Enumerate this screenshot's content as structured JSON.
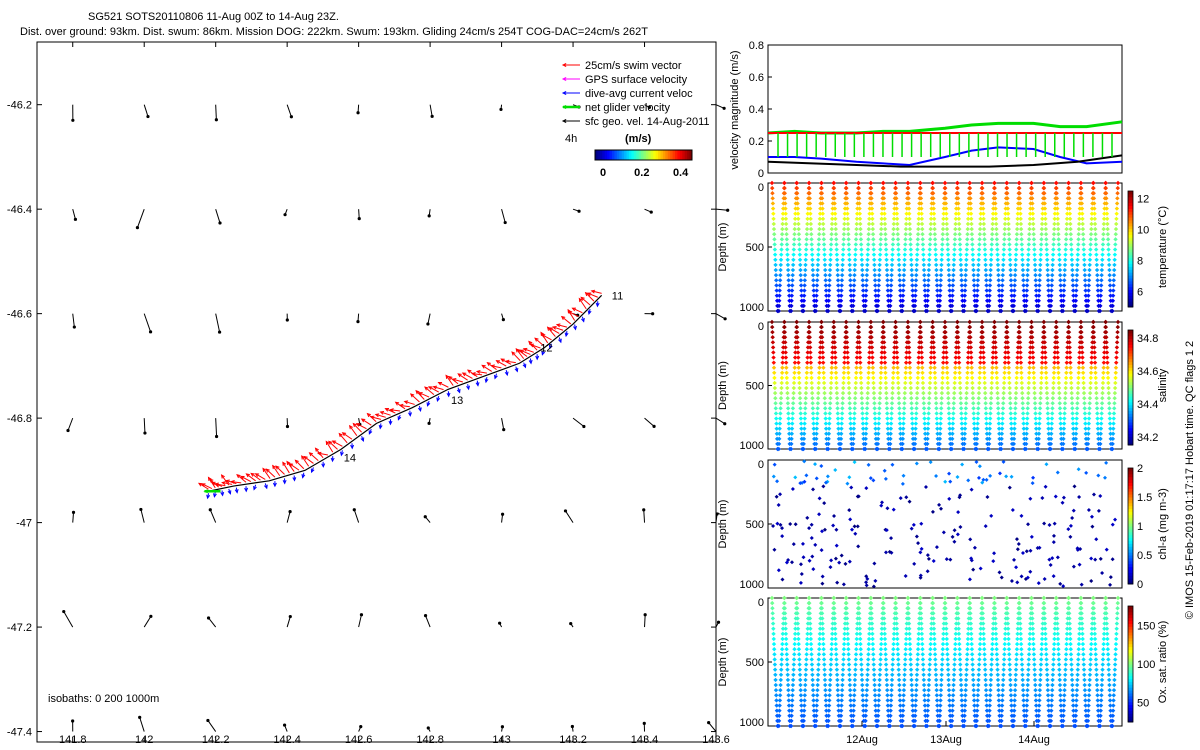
{
  "header": {
    "title_line1": "SG521 SOTS20110806 11-Aug 00Z to 14-Aug 23Z.",
    "title_line2": "Dist. over ground: 93km. Dist. swum: 86km. Mission DOG: 222km. Swum: 193km. Gliding 24cm/s 254T COG-DAC=24cm/s 262T"
  },
  "side_caption": "© IMOS 15-Feb-2019 01:17:17 Hobart time. QC flags 1  2",
  "colors": {
    "swim_vector": "#ff0000",
    "gps_velocity": "#ff00ff",
    "dive_avg_current": "#0000ff",
    "net_glider_velocity": "#00dd00",
    "sfc_geo_velocity": "#000000",
    "velocity_gps_line": "#ff0000"
  },
  "chart_data": [
    {
      "id": "map",
      "type": "scatter",
      "title": "",
      "xlim": [
        141.7,
        143.6
      ],
      "ylim": [
        -47.42,
        -46.08
      ],
      "x_ticks": [
        "141.8",
        "142",
        "142.2",
        "142.4",
        "142.6",
        "142.8",
        "143",
        "143.2",
        "143.4",
        "143.6"
      ],
      "y_ticks": [
        "-46.2",
        "-46.4",
        "-46.6",
        "-46.8",
        "-47",
        "-47.2",
        "-47.4"
      ],
      "legend": {
        "entries": [
          "25cm/s swim vector",
          "GPS surface velocity",
          "dive-avg current veloc",
          "net glider velocity",
          "sfc geo. vel. 14-Aug-2011"
        ],
        "time_label": "4h",
        "colorbar_title": "(m/s)",
        "colorbar_ticks": [
          "0",
          "0.2",
          "0.4"
        ],
        "placement": "top-right"
      },
      "isobaths_label": "isobaths: 0   200  1000m",
      "track": {
        "lon": [
          142.18,
          142.25,
          142.35,
          142.45,
          142.55,
          142.65,
          142.75,
          142.85,
          142.95,
          143.05,
          143.12,
          143.2,
          143.28
        ],
        "lat": [
          -46.94,
          -46.93,
          -46.92,
          -46.9,
          -46.86,
          -46.81,
          -46.78,
          -46.745,
          -46.72,
          -46.695,
          -46.665,
          -46.62,
          -46.565
        ]
      },
      "day_markers": [
        {
          "label": "11",
          "lon": 143.3,
          "lat": -46.565
        },
        {
          "label": "12",
          "lon": 143.1,
          "lat": -46.665
        },
        {
          "label": "13",
          "lon": 142.85,
          "lat": -46.765
        },
        {
          "label": "14",
          "lon": 142.55,
          "lat": -46.875
        }
      ],
      "grid_lon": [
        141.8,
        142,
        142.2,
        142.4,
        142.6,
        142.8,
        143,
        143.2,
        143.4,
        143.6
      ],
      "grid_lat": [
        -46.2,
        -46.4,
        -46.6,
        -46.8,
        -47,
        -47.2,
        -47.4
      ]
    },
    {
      "id": "velocity",
      "type": "line",
      "xlim": [
        0,
        4
      ],
      "ylim": [
        0,
        0.8
      ],
      "ylabel": "velocity magnitude (m/s)",
      "y_ticks": [
        "0",
        "0.2",
        "0.4",
        "0.6",
        "0.8"
      ],
      "series": [
        {
          "color": "#00dd00",
          "x": [
            0,
            0.3,
            0.6,
            1,
            1.3,
            1.6,
            2,
            2.3,
            2.6,
            3,
            3.3,
            3.6,
            4
          ],
          "values": [
            0.25,
            0.26,
            0.25,
            0.25,
            0.26,
            0.26,
            0.28,
            0.3,
            0.31,
            0.31,
            0.29,
            0.29,
            0.32
          ]
        },
        {
          "color": "#ff0000",
          "x": [
            0,
            4
          ],
          "values": [
            0.25,
            0.25
          ]
        },
        {
          "color": "#0000ff",
          "x": [
            0,
            0.3,
            0.6,
            1,
            1.3,
            1.6,
            2,
            2.3,
            2.6,
            3,
            3.3,
            3.6,
            4
          ],
          "values": [
            0.1,
            0.1,
            0.09,
            0.07,
            0.06,
            0.05,
            0.1,
            0.14,
            0.16,
            0.15,
            0.1,
            0.06,
            0.07
          ]
        },
        {
          "color": "#000000",
          "x": [
            0,
            0.5,
            1,
            1.5,
            2,
            2.5,
            3,
            3.5,
            4
          ],
          "values": [
            0.07,
            0.06,
            0.05,
            0.04,
            0.04,
            0.04,
            0.05,
            0.07,
            0.11
          ]
        }
      ]
    },
    {
      "id": "temperature",
      "type": "scatter",
      "ylabel": "Depth (m)",
      "y_ticks": [
        "0",
        "500",
        "1000"
      ],
      "colorbar_label": "temperature (°C)",
      "colorbar_ticks": [
        "6",
        "8",
        "10",
        "12"
      ],
      "clim": [
        5,
        12.5
      ],
      "surface_value": 11.5,
      "deep_value": 5.5
    },
    {
      "id": "salinity",
      "type": "scatter",
      "ylabel": "Depth (m)",
      "y_ticks": [
        "0",
        "500",
        "1000"
      ],
      "colorbar_label": "salinity",
      "colorbar_ticks": [
        "34.2",
        "34.4",
        "34.6",
        "34.8"
      ],
      "clim": [
        34.15,
        34.85
      ],
      "surface_value": 34.85,
      "deep_value": 34.3
    },
    {
      "id": "chla",
      "type": "scatter",
      "ylabel": "Depth (m)",
      "y_ticks": [
        "0",
        "500",
        "1000"
      ],
      "colorbar_label": "chl-a (mg m-3)",
      "colorbar_ticks": [
        "0",
        "0.5",
        "1",
        "1.5",
        "2"
      ],
      "clim": [
        0,
        2
      ],
      "surface_value": 0.35,
      "deep_value": 0.0
    },
    {
      "id": "oxygen",
      "type": "scatter",
      "ylabel": "Depth (m)",
      "y_ticks": [
        "0",
        "500",
        "1000"
      ],
      "colorbar_label": "Ox. sat. ratio (%)",
      "colorbar_ticks": [
        "50",
        "100",
        "150"
      ],
      "clim": [
        25,
        175
      ],
      "surface_value": 100,
      "deep_value": 55,
      "x_ticks": [
        "12Aug",
        "13Aug",
        "14Aug"
      ]
    }
  ]
}
